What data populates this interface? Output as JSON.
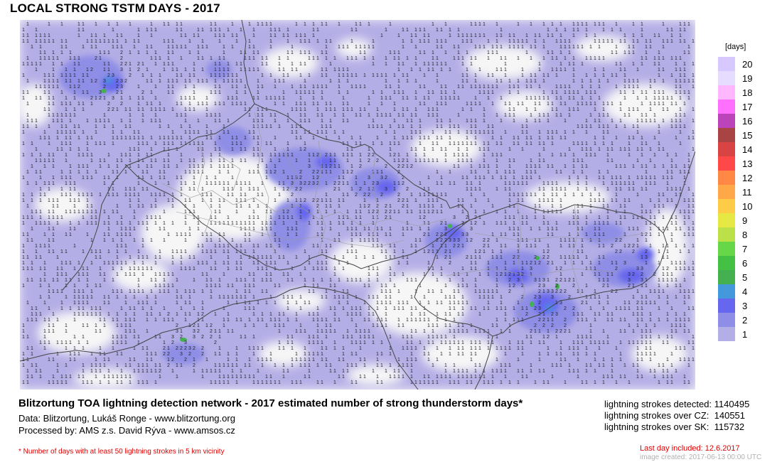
{
  "title": "LOCAL STRONG TSTM DAYS - 2017",
  "legend": {
    "unit": "[days]",
    "items": [
      {
        "value": "20",
        "color": "#d7c8ff"
      },
      {
        "value": "19",
        "color": "#e6dcff"
      },
      {
        "value": "18",
        "color": "#ffb8ff"
      },
      {
        "value": "17",
        "color": "#ff70ff"
      },
      {
        "value": "16",
        "color": "#bb44bb"
      },
      {
        "value": "15",
        "color": "#a84444"
      },
      {
        "value": "14",
        "color": "#d84444"
      },
      {
        "value": "13",
        "color": "#ff4848"
      },
      {
        "value": "12",
        "color": "#ff8844"
      },
      {
        "value": "11",
        "color": "#ffa848"
      },
      {
        "value": "10",
        "color": "#ffcc48"
      },
      {
        "value": "9",
        "color": "#e8e844"
      },
      {
        "value": "8",
        "color": "#bbe048"
      },
      {
        "value": "7",
        "color": "#66d848"
      },
      {
        "value": "6",
        "color": "#44c044"
      },
      {
        "value": "5",
        "color": "#44b050"
      },
      {
        "value": "4",
        "color": "#4499dd"
      },
      {
        "value": "3",
        "color": "#6666ee"
      },
      {
        "value": "2",
        "color": "#8e8ee6"
      },
      {
        "value": "1",
        "color": "#b4aee6"
      }
    ]
  },
  "footer": {
    "heading": "Blitzortung TOA lightning detection network - 2017  estimated number of strong thunderstorm days*",
    "data_credit": "Data: Blitzortung, Lukáš Ronge - www.blitzortung.org",
    "processed_by": "Processed by: AMS z.s. David Rýva - www.amsos.cz",
    "footnote": "* Number of days with at least 50 lightning strokes in 5 km vicinity"
  },
  "stats": [
    {
      "label": "lightning strokes detected:",
      "value": "1140495"
    },
    {
      "label": "lightning strokes over CZ:",
      "value": "140551"
    },
    {
      "label": "lightning strokes over SK:",
      "value": "115732"
    }
  ],
  "last_day": "Last day included: 12.6.2017",
  "image_created": "image created: 2017-06-13 00:00 UTC",
  "map": {
    "background": "#f6f6f6",
    "border_color": "#444444",
    "district_color": "#999999"
  }
}
